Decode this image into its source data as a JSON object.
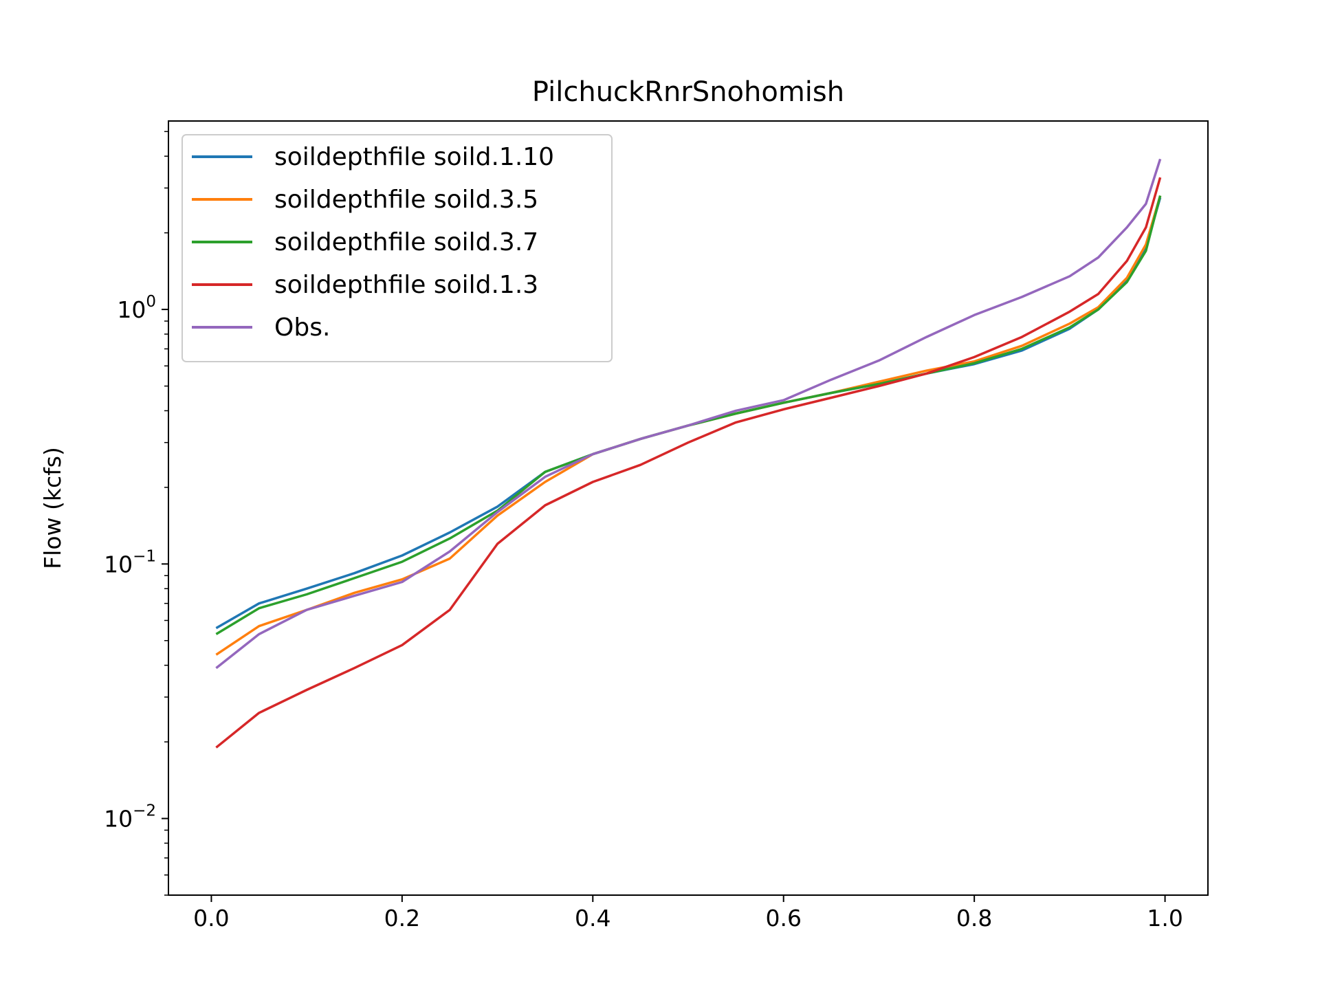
{
  "chart_data": {
    "type": "line",
    "title": "PilchuckRnrSnohomish",
    "xlabel": "",
    "ylabel": "Flow (kcfs)",
    "xlim": [
      -0.045,
      1.045
    ],
    "ylim": [
      0.005,
      5.5
    ],
    "yscale": "log",
    "grid": false,
    "legend_position": "top-left",
    "x_ticks": [
      0.0,
      0.2,
      0.4,
      0.6,
      0.8,
      1.0
    ],
    "x_tick_labels": [
      "0.0",
      "0.2",
      "0.4",
      "0.6",
      "0.8",
      "1.0"
    ],
    "y_ticks": [
      0.01,
      0.1,
      1
    ],
    "y_tick_labels": [
      {
        "base": "10",
        "exp": "−2"
      },
      {
        "base": "10",
        "exp": "−1"
      },
      {
        "base": "10",
        "exp": "0"
      }
    ],
    "x": [
      0.005,
      0.05,
      0.1,
      0.15,
      0.2,
      0.25,
      0.3,
      0.35,
      0.4,
      0.45,
      0.5,
      0.55,
      0.6,
      0.65,
      0.7,
      0.75,
      0.8,
      0.85,
      0.9,
      0.93,
      0.96,
      0.98,
      0.995
    ],
    "series": [
      {
        "name": "soildepthfile soild.1.10",
        "color": "#1f77b4",
        "values": [
          0.056,
          0.07,
          0.08,
          0.092,
          0.108,
          0.133,
          0.168,
          0.23,
          0.27,
          0.31,
          0.35,
          0.39,
          0.43,
          0.47,
          0.51,
          0.56,
          0.61,
          0.69,
          0.84,
          1.0,
          1.3,
          1.75,
          2.75
        ]
      },
      {
        "name": "soildepthfile soild.3.5",
        "color": "#ff7f0e",
        "values": [
          0.044,
          0.057,
          0.066,
          0.077,
          0.087,
          0.105,
          0.155,
          0.21,
          0.27,
          0.31,
          0.35,
          0.39,
          0.43,
          0.47,
          0.52,
          0.575,
          0.625,
          0.72,
          0.88,
          1.02,
          1.33,
          1.8,
          2.8
        ]
      },
      {
        "name": "soildepthfile soild.3.7",
        "color": "#2ca02c",
        "values": [
          0.053,
          0.067,
          0.076,
          0.088,
          0.102,
          0.126,
          0.162,
          0.23,
          0.27,
          0.31,
          0.35,
          0.39,
          0.43,
          0.47,
          0.51,
          0.56,
          0.615,
          0.7,
          0.85,
          1.0,
          1.28,
          1.7,
          2.8
        ]
      },
      {
        "name": "soildepthfile soild.1.3",
        "color": "#d62728",
        "values": [
          0.019,
          0.026,
          0.032,
          0.039,
          0.048,
          0.066,
          0.12,
          0.17,
          0.21,
          0.245,
          0.3,
          0.36,
          0.405,
          0.45,
          0.5,
          0.56,
          0.65,
          0.78,
          0.98,
          1.15,
          1.55,
          2.1,
          3.3
        ]
      },
      {
        "name": "Obs.",
        "color": "#9467bd",
        "values": [
          0.039,
          0.053,
          0.066,
          0.075,
          0.085,
          0.112,
          0.16,
          0.22,
          0.27,
          0.31,
          0.35,
          0.4,
          0.44,
          0.53,
          0.63,
          0.78,
          0.95,
          1.12,
          1.35,
          1.6,
          2.1,
          2.6,
          3.9
        ]
      }
    ]
  }
}
